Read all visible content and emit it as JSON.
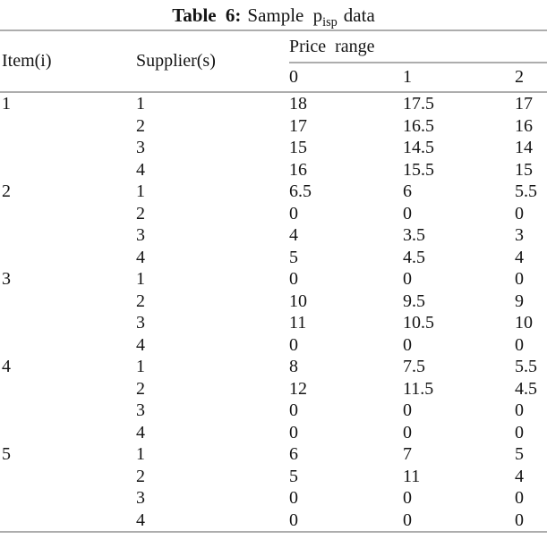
{
  "caption": {
    "label": "Table 6:",
    "pre_sub": "Sample p",
    "sub": "isp",
    "suffix": "data"
  },
  "table": {
    "headers": {
      "item": "Item(i)",
      "supplier": "Supplier(s)",
      "price_group": "Price range",
      "price_levels": [
        "0",
        "1",
        "2"
      ]
    },
    "rows": [
      {
        "item": "1",
        "supplier": "1",
        "prices": [
          "18",
          "17.5",
          "17"
        ]
      },
      {
        "item": "",
        "supplier": "2",
        "prices": [
          "17",
          "16.5",
          "16"
        ]
      },
      {
        "item": "",
        "supplier": "3",
        "prices": [
          "15",
          "14.5",
          "14"
        ]
      },
      {
        "item": "",
        "supplier": "4",
        "prices": [
          "16",
          "15.5",
          "15"
        ]
      },
      {
        "item": "2",
        "supplier": "1",
        "prices": [
          "6.5",
          "6",
          "5.5"
        ]
      },
      {
        "item": "",
        "supplier": "2",
        "prices": [
          "0",
          "0",
          "0"
        ]
      },
      {
        "item": "",
        "supplier": "3",
        "prices": [
          "4",
          "3.5",
          "3"
        ]
      },
      {
        "item": "",
        "supplier": "4",
        "prices": [
          "5",
          "4.5",
          "4"
        ]
      },
      {
        "item": "3",
        "supplier": "1",
        "prices": [
          "0",
          "0",
          "0"
        ]
      },
      {
        "item": "",
        "supplier": "2",
        "prices": [
          "10",
          "9.5",
          "9"
        ]
      },
      {
        "item": "",
        "supplier": "3",
        "prices": [
          "11",
          "10.5",
          "10"
        ]
      },
      {
        "item": "",
        "supplier": "4",
        "prices": [
          "0",
          "0",
          "0"
        ]
      },
      {
        "item": "4",
        "supplier": "1",
        "prices": [
          "8",
          "7.5",
          "5.5"
        ]
      },
      {
        "item": "",
        "supplier": "2",
        "prices": [
          "12",
          "11.5",
          "4.5"
        ]
      },
      {
        "item": "",
        "supplier": "3",
        "prices": [
          "0",
          "0",
          "0"
        ]
      },
      {
        "item": "",
        "supplier": "4",
        "prices": [
          "0",
          "0",
          "0"
        ]
      },
      {
        "item": "5",
        "supplier": "1",
        "prices": [
          "6",
          "7",
          "5"
        ]
      },
      {
        "item": "",
        "supplier": "2",
        "prices": [
          "5",
          "11",
          "4"
        ]
      },
      {
        "item": "",
        "supplier": "3",
        "prices": [
          "0",
          "0",
          "0"
        ]
      },
      {
        "item": "",
        "supplier": "4",
        "prices": [
          "0",
          "0",
          "0"
        ]
      }
    ]
  }
}
